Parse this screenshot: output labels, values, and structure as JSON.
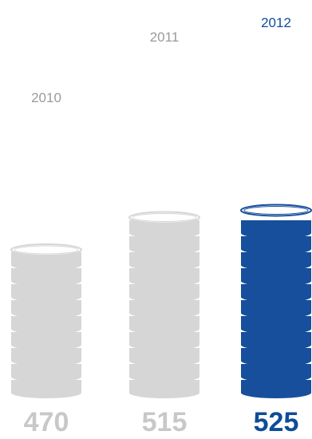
{
  "chart_data": {
    "type": "bar",
    "categories": [
      "2010",
      "2011",
      "2012"
    ],
    "values": [
      470,
      515,
      525
    ],
    "value_labels": [
      "470",
      "515",
      "525"
    ],
    "highlighted_category": "2012",
    "title": "",
    "xlabel": "",
    "ylabel": "",
    "grid": false,
    "legend": "none",
    "colors": {
      "default_coin": "#d6d6d6",
      "default_text_year": "#9a9a9a",
      "default_text_value": "#c8c8c8",
      "highlight_coin": "#174f9c",
      "highlight_text": "#0f4c9a"
    }
  }
}
